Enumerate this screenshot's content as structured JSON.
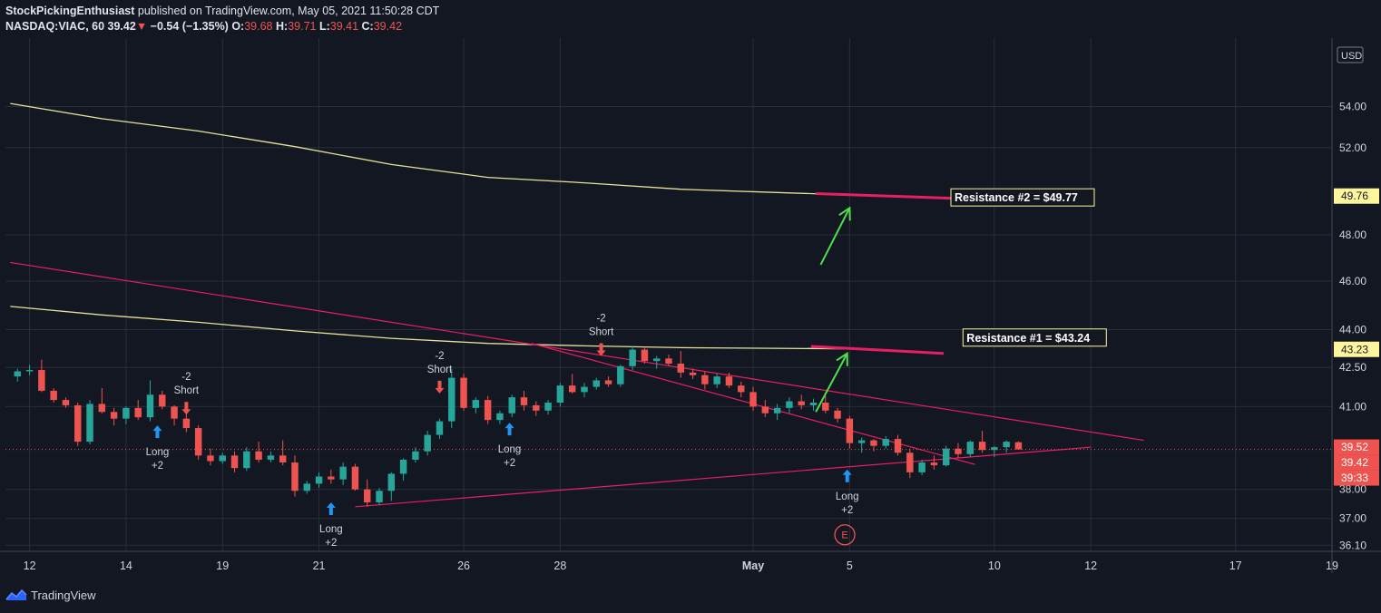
{
  "header": {
    "author": "StockPickingEnthusiast",
    "published_text": "published on TradingView.com, May 05, 2021 11:50:28 CDT",
    "symbol": "NASDAQ:VIAC, 60",
    "last": "39.42",
    "change_arrow": "▼",
    "change": "−0.54 (−1.35%)",
    "o_label": "O:",
    "o_value": "39.68",
    "h_label": "H:",
    "h_value": "39.71",
    "l_label": "L:",
    "l_value": "39.41",
    "c_label": "C:",
    "c_value": "39.42"
  },
  "footer": {
    "brand": "TradingView",
    "logo_icon": "tradingview-logo-icon"
  },
  "chart_data": {
    "type": "candlestick",
    "currency": "USD",
    "y_ticks": [
      "54.00",
      "52.00",
      "48.00",
      "46.00",
      "44.00",
      "42.50",
      "41.00",
      "38.00",
      "37.00",
      "36.10"
    ],
    "x_ticks": [
      "12",
      "14",
      "19",
      "21",
      "26",
      "28",
      "May",
      "5",
      "10",
      "12",
      "17",
      "19"
    ],
    "price_labels": [
      {
        "text": "49.76",
        "price": 49.76,
        "kind": "ma"
      },
      {
        "text": "43.23",
        "price": 43.23,
        "kind": "ma"
      },
      {
        "text": "39.52",
        "price": 39.52,
        "kind": "red"
      },
      {
        "text": "39.42",
        "price": 39.42,
        "kind": "red"
      },
      {
        "text": "39:33",
        "price": 39.2,
        "kind": "red"
      }
    ],
    "current_price": 39.42,
    "resistances": [
      {
        "label": "Resistance #2 = $49.77",
        "price": 49.77
      },
      {
        "label": "Resistance #1 = $43.24",
        "price": 43.24
      }
    ],
    "signals": [
      {
        "type": "long",
        "lines": [
          "Long",
          "+2"
        ],
        "session": 6.3
      },
      {
        "type": "short",
        "lines": [
          "-2",
          "Short"
        ],
        "session": 7.5
      },
      {
        "type": "long",
        "lines": [
          "Long",
          "+2"
        ],
        "session": 13.5
      },
      {
        "type": "short",
        "lines": [
          "-2",
          "Short"
        ],
        "session": 18.0
      },
      {
        "type": "long",
        "lines": [
          "Long",
          "+2"
        ],
        "session": 20.9
      },
      {
        "type": "short",
        "lines": [
          "-2",
          "Short"
        ],
        "session": 24.7
      },
      {
        "type": "long",
        "lines": [
          "Long",
          "+2"
        ],
        "session": 34.9
      }
    ],
    "earnings_marker": {
      "text": "E",
      "session": 34.8
    },
    "ma_series": [
      {
        "name": "",
        "color": "#e6e29a",
        "points": [
          [
            0.2,
            54.15
          ],
          [
            4,
            53.4
          ],
          [
            8,
            52.8
          ],
          [
            12,
            52.05
          ],
          [
            16,
            51.2
          ],
          [
            20,
            50.6
          ],
          [
            24,
            50.35
          ],
          [
            28,
            50.05
          ],
          [
            32,
            49.9
          ],
          [
            35.8,
            49.76
          ]
        ]
      },
      {
        "name": "",
        "color": "#e6e29a",
        "points": [
          [
            0.2,
            44.95
          ],
          [
            4,
            44.6
          ],
          [
            8,
            44.3
          ],
          [
            12,
            43.95
          ],
          [
            16,
            43.65
          ],
          [
            20,
            43.45
          ],
          [
            24,
            43.35
          ],
          [
            28,
            43.28
          ],
          [
            35.8,
            43.23
          ]
        ]
      }
    ],
    "trendlines": [
      {
        "color": "#e91e63",
        "points": [
          [
            0.2,
            46.8
          ],
          [
            47.2,
            39.75
          ]
        ]
      },
      {
        "color": "#e91e63",
        "points": [
          [
            21.8,
            43.45
          ],
          [
            40.2,
            38.88
          ]
        ]
      },
      {
        "color": "#e91e63",
        "points": [
          [
            14.5,
            37.4
          ],
          [
            45,
            39.5
          ]
        ]
      }
    ],
    "candles": [
      [
        0.5,
        42.15,
        42.45,
        41.95,
        42.35
      ],
      [
        1.0,
        42.35,
        42.6,
        42.2,
        42.4
      ],
      [
        1.5,
        42.4,
        42.8,
        41.55,
        41.6
      ],
      [
        2.0,
        41.6,
        41.7,
        41.15,
        41.25
      ],
      [
        2.5,
        41.25,
        41.35,
        40.95,
        41.05
      ],
      [
        3.0,
        41.05,
        41.15,
        39.55,
        39.7
      ],
      [
        3.5,
        39.7,
        41.25,
        39.6,
        41.1
      ],
      [
        4.0,
        41.1,
        41.7,
        40.75,
        40.8
      ],
      [
        4.5,
        40.8,
        40.95,
        40.3,
        40.55
      ],
      [
        5.0,
        40.55,
        41.0,
        40.35,
        40.95
      ],
      [
        5.5,
        40.95,
        41.25,
        40.5,
        40.6
      ],
      [
        6.0,
        40.6,
        42.0,
        40.45,
        41.45
      ],
      [
        6.5,
        41.45,
        41.6,
        40.9,
        41.0
      ],
      [
        7.0,
        41.0,
        41.05,
        40.3,
        40.55
      ],
      [
        7.5,
        40.55,
        40.85,
        40.05,
        40.2
      ],
      [
        8.0,
        40.2,
        40.3,
        39.05,
        39.2
      ],
      [
        8.5,
        39.2,
        39.45,
        38.85,
        39.0
      ],
      [
        9.0,
        39.0,
        39.3,
        38.9,
        39.2
      ],
      [
        9.5,
        39.2,
        39.35,
        38.6,
        38.75
      ],
      [
        10.0,
        38.75,
        39.5,
        38.65,
        39.35
      ],
      [
        10.5,
        39.35,
        39.7,
        38.95,
        39.05
      ],
      [
        11.0,
        39.05,
        39.35,
        38.95,
        39.2
      ],
      [
        11.5,
        39.2,
        39.75,
        38.85,
        38.95
      ],
      [
        12.0,
        38.95,
        39.2,
        37.75,
        37.95
      ],
      [
        12.5,
        37.95,
        38.3,
        37.85,
        38.2
      ],
      [
        13.0,
        38.2,
        38.6,
        38.05,
        38.45
      ],
      [
        13.5,
        38.45,
        38.7,
        38.2,
        38.35
      ],
      [
        14.0,
        38.35,
        38.95,
        38.15,
        38.8
      ],
      [
        14.5,
        38.8,
        38.9,
        37.95,
        38.0
      ],
      [
        15.0,
        38.0,
        38.35,
        37.4,
        37.55
      ],
      [
        15.5,
        37.55,
        38.05,
        37.45,
        37.95
      ],
      [
        16.0,
        37.95,
        38.6,
        37.6,
        38.55
      ],
      [
        16.5,
        38.55,
        39.1,
        38.3,
        39.05
      ],
      [
        17.0,
        39.05,
        39.5,
        38.95,
        39.35
      ],
      [
        17.5,
        39.35,
        40.1,
        39.2,
        39.95
      ],
      [
        18.0,
        39.95,
        40.55,
        39.8,
        40.45
      ],
      [
        18.5,
        40.45,
        42.45,
        40.2,
        42.1
      ],
      [
        19.0,
        42.1,
        42.25,
        40.85,
        40.95
      ],
      [
        19.5,
        40.95,
        41.35,
        40.75,
        41.25
      ],
      [
        20.0,
        41.25,
        41.4,
        40.35,
        40.5
      ],
      [
        20.5,
        40.5,
        40.85,
        40.35,
        40.75
      ],
      [
        21.0,
        40.75,
        41.45,
        40.6,
        41.35
      ],
      [
        21.5,
        41.35,
        41.6,
        40.85,
        41.05
      ],
      [
        22.0,
        41.05,
        41.2,
        40.65,
        40.85
      ],
      [
        22.5,
        40.85,
        41.25,
        40.7,
        41.15
      ],
      [
        23.0,
        41.15,
        41.9,
        41.0,
        41.8
      ],
      [
        23.5,
        41.8,
        42.25,
        41.5,
        41.55
      ],
      [
        24.0,
        41.55,
        41.9,
        41.35,
        41.75
      ],
      [
        24.5,
        41.75,
        42.1,
        41.65,
        42.0
      ],
      [
        25.0,
        42.0,
        42.15,
        41.75,
        41.85
      ],
      [
        25.5,
        41.85,
        42.6,
        41.75,
        42.55
      ],
      [
        26.0,
        42.55,
        43.35,
        42.4,
        43.2
      ],
      [
        26.5,
        43.2,
        43.3,
        42.65,
        42.75
      ],
      [
        27.0,
        42.75,
        42.95,
        42.45,
        42.85
      ],
      [
        27.5,
        42.85,
        43.0,
        42.55,
        42.65
      ],
      [
        28.0,
        42.65,
        43.15,
        42.1,
        42.3
      ],
      [
        28.5,
        42.3,
        42.45,
        42.05,
        42.2
      ],
      [
        29.0,
        42.2,
        42.35,
        41.65,
        41.85
      ],
      [
        29.5,
        41.85,
        42.25,
        41.7,
        42.15
      ],
      [
        30.0,
        42.15,
        42.3,
        41.7,
        41.8
      ],
      [
        30.5,
        41.8,
        41.95,
        41.35,
        41.55
      ],
      [
        31.0,
        41.55,
        41.75,
        40.85,
        41.0
      ],
      [
        31.5,
        41.0,
        41.25,
        40.6,
        40.75
      ],
      [
        32.0,
        40.75,
        41.1,
        40.5,
        40.95
      ],
      [
        32.5,
        40.95,
        41.35,
        40.75,
        41.2
      ],
      [
        33.0,
        41.2,
        41.45,
        40.9,
        41.05
      ],
      [
        33.5,
        41.05,
        41.3,
        40.85,
        41.15
      ],
      [
        34.0,
        41.15,
        41.4,
        40.75,
        40.85
      ],
      [
        34.5,
        40.85,
        40.95,
        40.4,
        40.55
      ],
      [
        35.0,
        40.55,
        40.65,
        39.45,
        39.65
      ],
      [
        35.5,
        39.65,
        39.85,
        39.3,
        39.75
      ],
      [
        36.0,
        39.75,
        39.8,
        39.35,
        39.55
      ],
      [
        36.5,
        39.55,
        39.9,
        39.45,
        39.8
      ],
      [
        37.0,
        39.8,
        39.95,
        39.2,
        39.3
      ],
      [
        37.5,
        39.3,
        39.45,
        38.4,
        38.6
      ],
      [
        38.0,
        38.6,
        39.05,
        38.5,
        38.95
      ],
      [
        38.5,
        38.95,
        39.2,
        38.7,
        38.85
      ],
      [
        39.0,
        38.85,
        39.55,
        38.8,
        39.45
      ],
      [
        39.5,
        39.45,
        39.65,
        39.1,
        39.25
      ],
      [
        40.0,
        39.25,
        39.75,
        39.15,
        39.7
      ],
      [
        40.5,
        39.7,
        40.1,
        39.3,
        39.4
      ],
      [
        41.0,
        39.4,
        39.55,
        39.15,
        39.5
      ],
      [
        41.5,
        39.5,
        39.75,
        39.3,
        39.7
      ],
      [
        42.0,
        39.68,
        39.71,
        39.41,
        39.42
      ]
    ]
  }
}
